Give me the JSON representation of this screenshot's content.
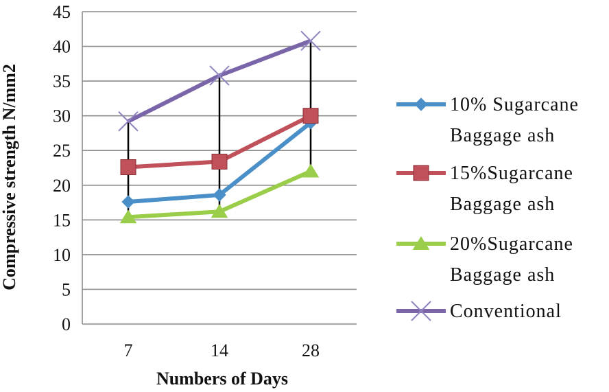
{
  "chart_data": {
    "type": "line",
    "categories": [
      "7",
      "14",
      "28"
    ],
    "xlabel": "Numbers of Days",
    "ylabel": "Compressive strength N/mm2",
    "ylim": [
      0,
      45
    ],
    "yticks": [
      "0",
      "5",
      "10",
      "15",
      "20",
      "25",
      "30",
      "35",
      "40",
      "45"
    ],
    "grid": true,
    "legend_position": "right",
    "series": [
      {
        "name": "10% Sugarcane Baggage ash",
        "legend_lines": [
          "10% Sugarcane",
          "Baggage ash"
        ],
        "values": [
          17.6,
          18.6,
          29.0
        ],
        "color": "#4a8fc8",
        "marker": "diamond"
      },
      {
        "name": "15%Sugarcane Baggage ash",
        "legend_lines": [
          "15%Sugarcane",
          "Baggage ash"
        ],
        "values": [
          22.6,
          23.4,
          30.0
        ],
        "color": "#c0505a",
        "marker": "square"
      },
      {
        "name": "20%Sugarcane Baggage ash",
        "legend_lines": [
          "20%Sugarcane",
          "Baggage ash"
        ],
        "values": [
          15.4,
          16.2,
          22.0
        ],
        "color": "#9acd4a",
        "marker": "triangle"
      },
      {
        "name": "Conventional",
        "legend_lines": [
          "Conventional"
        ],
        "values": [
          29.2,
          35.8,
          40.8
        ],
        "color": "#7a65a8",
        "marker": "x"
      }
    ],
    "error_bar_color": "#000000"
  }
}
